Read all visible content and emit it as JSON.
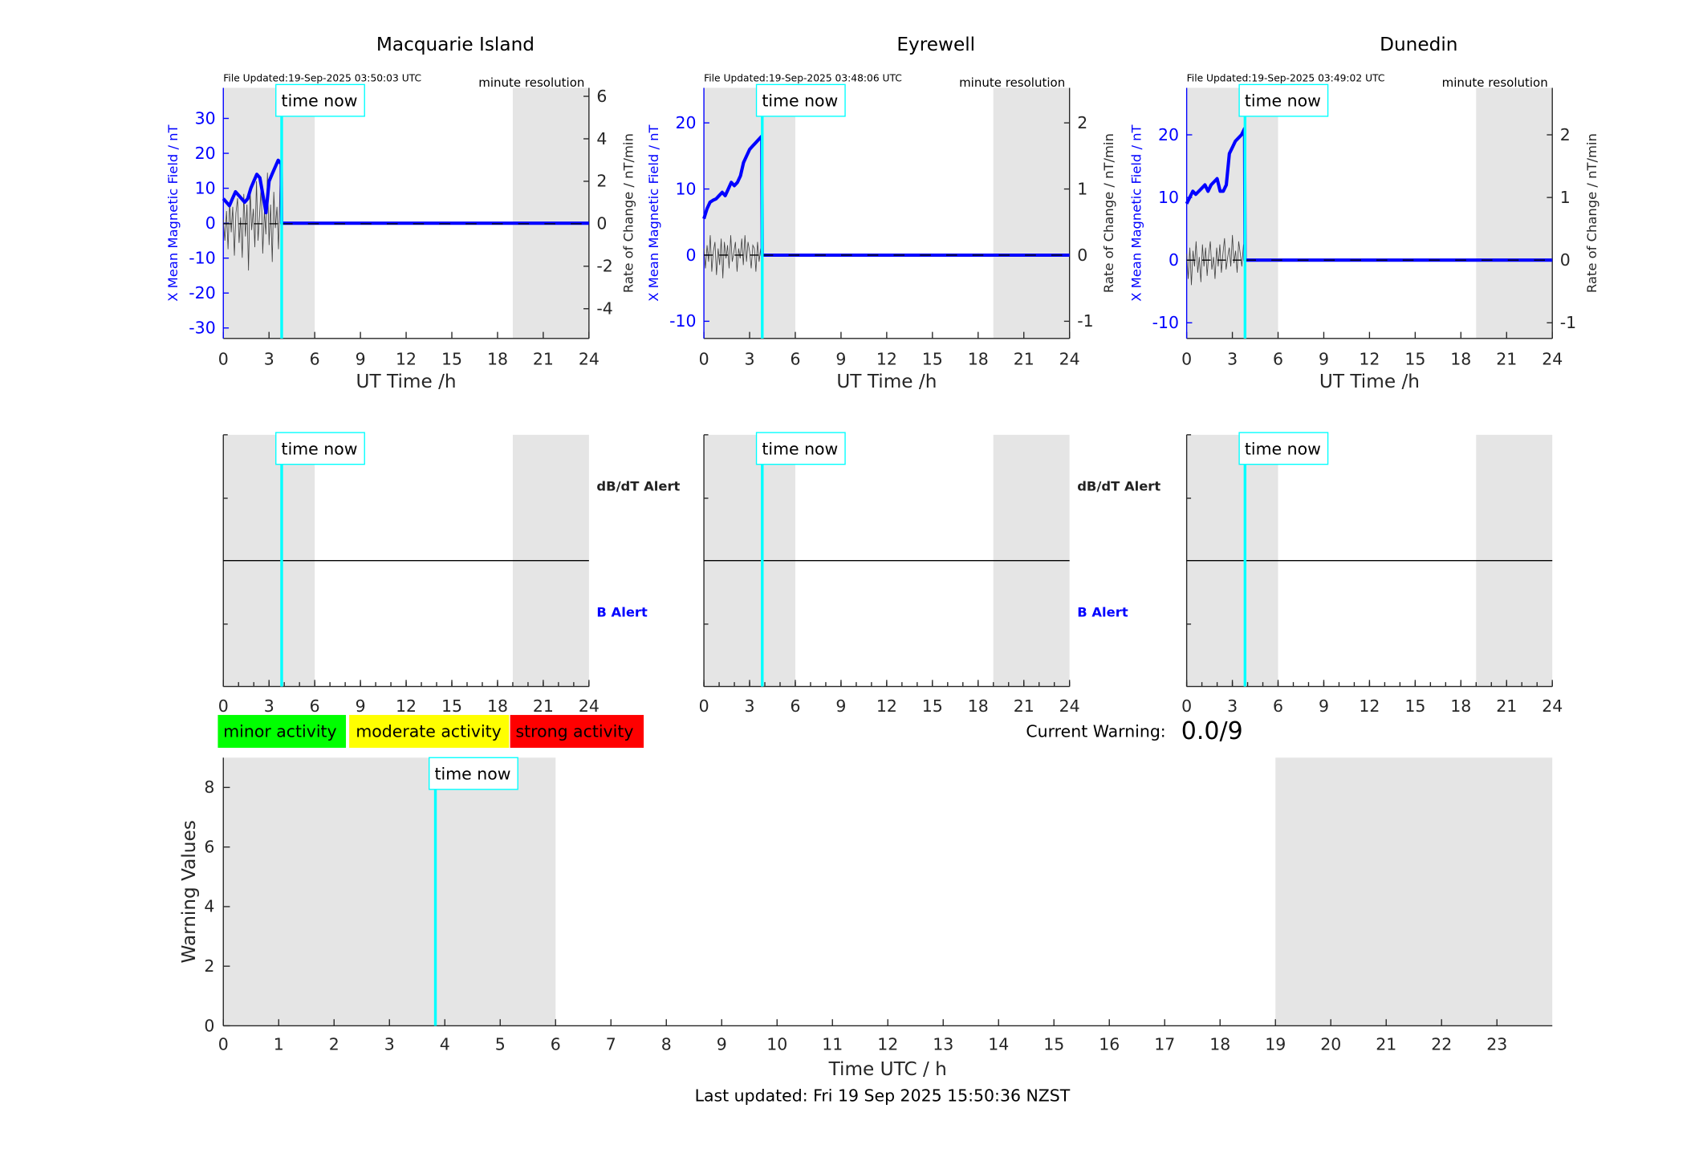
{
  "colors": {
    "x_field": "#0000ff",
    "rate": "#404040",
    "time_now": "#00ffff",
    "night_shade": "#e5e5e5",
    "minor": "#00ff00",
    "moderate": "#ffff00",
    "strong": "#ff0000"
  },
  "time_now_label": "time now",
  "time_now_h": 3.83,
  "chart_data": [
    {
      "type": "line",
      "title": "Macquarie Island",
      "file_updated": "File Updated:19-Sep-2025 03:50:03 UTC",
      "resolution": "minute resolution",
      "xlabel": "UT Time /h",
      "ylabel_left": "X Mean Magnetic Field / nT",
      "ylabel_right": "Rate of Change / nT/min",
      "xlim": [
        0,
        24
      ],
      "xticks": [
        0,
        3,
        6,
        9,
        12,
        15,
        18,
        21,
        24
      ],
      "ylim_left": [
        -33,
        38.75
      ],
      "yticks_left": [
        -30,
        -20,
        -10,
        0,
        10,
        20,
        30
      ],
      "ylim_right": [
        -5.4,
        6.4
      ],
      "yticks_right": [
        -4,
        -2,
        0,
        2,
        4,
        6
      ],
      "shaded_h": [
        [
          0,
          6
        ],
        [
          19,
          24
        ]
      ],
      "x_field": [
        7,
        6,
        5,
        7,
        9,
        8,
        7,
        6,
        7,
        10,
        12,
        14,
        13,
        8,
        3,
        12,
        14,
        16,
        18,
        17
      ],
      "rate": [
        0.2,
        -0.8,
        0.6,
        -1.2,
        1.0,
        -0.4,
        0.8,
        -1.5,
        0.5,
        1.2,
        -0.9,
        0.3,
        -1.6,
        1.4,
        -0.6,
        0.9,
        -2.2,
        1.6,
        -0.3,
        0.7,
        -1.1,
        2.0,
        -0.8,
        0.4,
        1.8,
        -1.4,
        0.6,
        -0.5,
        2.4,
        -1.0,
        0.9,
        -1.8,
        1.5,
        -0.2,
        0.8,
        -1.2,
        2.1,
        -0.6
      ]
    },
    {
      "type": "line",
      "title": "Eyrewell",
      "file_updated": "File Updated:19-Sep-2025 03:48:06 UTC",
      "resolution": "minute resolution",
      "xlabel": "UT Time /h",
      "ylabel_left": "X Mean Magnetic Field / nT",
      "ylabel_right": "Rate of Change / nT/min",
      "xlim": [
        0,
        24
      ],
      "xticks": [
        0,
        3,
        6,
        9,
        12,
        15,
        18,
        21,
        24
      ],
      "ylim_left": [
        -12.6,
        25.3
      ],
      "yticks_left": [
        -10,
        0,
        10,
        20
      ],
      "ylim_right": [
        -1.26,
        2.53
      ],
      "yticks_right": [
        -1,
        0,
        1,
        2
      ],
      "shaded_h": [
        [
          0,
          6
        ],
        [
          19,
          24
        ]
      ],
      "x_field": [
        5.5,
        7,
        8,
        8.3,
        8.5,
        9,
        9.5,
        9,
        10,
        11,
        10.5,
        11,
        12,
        14,
        15,
        16,
        16.5,
        17,
        17.5,
        18
      ],
      "rate": [
        0.1,
        -0.2,
        0.15,
        -0.1,
        0.3,
        -0.25,
        0.05,
        0.2,
        -0.3,
        0.1,
        -0.15,
        0.25,
        -0.35,
        0.2,
        -0.05,
        0.15,
        -0.2,
        0.3,
        -0.1,
        0.05,
        0.2,
        -0.25,
        0.1,
        -0.05,
        0.25,
        -0.15,
        0.3,
        -0.1,
        0.2,
        0.05,
        -0.2,
        0.15,
        0.1,
        -0.25,
        0.2,
        -0.1,
        0.1,
        -0.2
      ]
    },
    {
      "type": "line",
      "title": "Dunedin",
      "file_updated": "File Updated:19-Sep-2025 03:49:02 UTC",
      "resolution": "minute resolution",
      "xlabel": "UT Time /h",
      "ylabel_left": "X Mean Magnetic Field / nT",
      "ylabel_right": "Rate of Change / nT/min",
      "xlim": [
        0,
        24
      ],
      "xticks": [
        0,
        3,
        6,
        9,
        12,
        15,
        18,
        21,
        24
      ],
      "ylim_left": [
        -12.5,
        27.5
      ],
      "yticks_left": [
        -10,
        0,
        10,
        20
      ],
      "ylim_right": [
        -1.25,
        2.75
      ],
      "yticks_right": [
        -1,
        0,
        1,
        2
      ],
      "shaded_h": [
        [
          0,
          6
        ],
        [
          19,
          24
        ]
      ],
      "x_field": [
        9,
        10,
        11,
        10.5,
        11,
        11.5,
        12,
        11,
        12,
        12.5,
        13,
        11,
        11,
        12,
        17,
        18,
        19,
        19.5,
        20,
        21
      ],
      "rate": [
        0.1,
        -0.3,
        0.2,
        -0.4,
        0.15,
        -0.1,
        0.3,
        -0.2,
        0.05,
        -0.35,
        0.25,
        -0.1,
        0.2,
        -0.25,
        0.1,
        0.3,
        -0.15,
        0.05,
        -0.3,
        0.2,
        -0.1,
        0.25,
        -0.2,
        0.1,
        0.35,
        -0.15,
        0.05,
        0.2,
        -0.1,
        0.4,
        -0.05,
        0.15,
        -0.2,
        0.3,
        0.1,
        -0.1,
        0.25,
        0.05
      ]
    },
    {
      "type": "alert",
      "xlim": [
        0,
        24
      ],
      "xticks": [
        0,
        3,
        6,
        9,
        12,
        15,
        18,
        21,
        24
      ],
      "labels": [
        "dB/dT Alert",
        "B Alert"
      ],
      "shaded_h": [
        [
          0,
          6
        ],
        [
          19,
          24
        ]
      ],
      "stations": 3
    },
    {
      "type": "line",
      "xlabel": "Time UTC / h",
      "ylabel": "Warning Values",
      "xlim": [
        0,
        24
      ],
      "xticks": [
        0,
        1,
        2,
        3,
        4,
        5,
        6,
        7,
        8,
        9,
        10,
        11,
        12,
        13,
        14,
        15,
        16,
        17,
        18,
        19,
        20,
        21,
        22,
        23
      ],
      "ylim": [
        0,
        9
      ],
      "yticks": [
        0,
        2,
        4,
        6,
        8
      ],
      "shaded_h": [
        [
          0,
          6
        ],
        [
          19,
          24
        ]
      ],
      "values": []
    }
  ],
  "legend": {
    "minor": "minor activity",
    "moderate": "moderate activity",
    "strong": "strong activity"
  },
  "current_warning": {
    "label": "Current Warning:",
    "value": "0.0/9"
  },
  "last_updated": "Last updated: Fri 19 Sep 2025 15:50:36 NZST"
}
